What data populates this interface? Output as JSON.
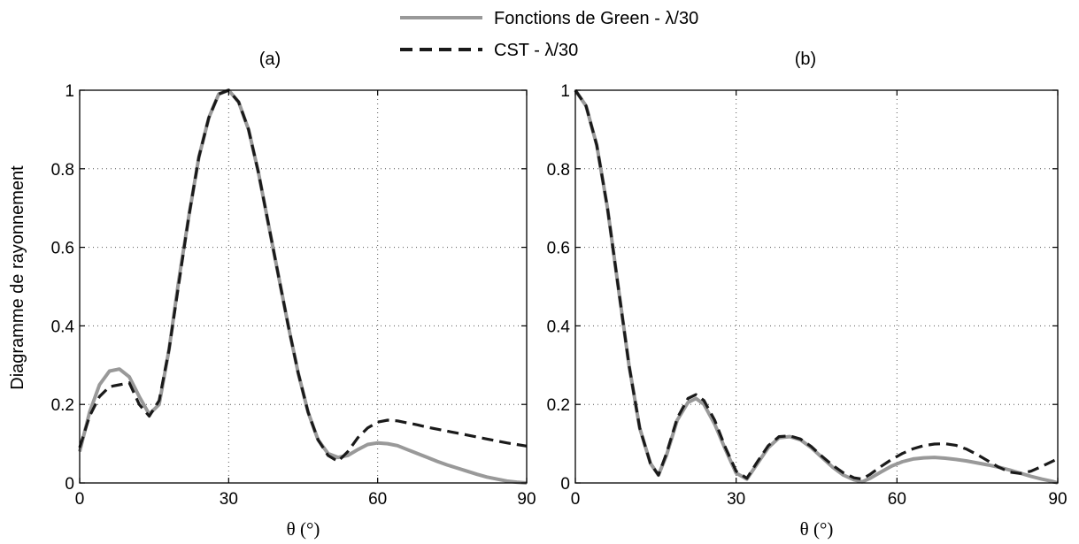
{
  "chart_data": [
    {
      "type": "line",
      "panel_label": "(a)",
      "xlabel": "θ (°)",
      "ylabel": "Diagramme de rayonnement",
      "xlim": [
        0,
        90
      ],
      "ylim": [
        0,
        1
      ],
      "xticks": [
        0,
        30,
        60,
        90
      ],
      "yticks": [
        0,
        0.2,
        0.4,
        0.6,
        0.8,
        1
      ],
      "xtick_labels": [
        "0",
        "30",
        "60",
        "90"
      ],
      "ytick_labels": [
        "0",
        "0.2",
        "0.4",
        "0.6",
        "0.8",
        "1"
      ],
      "grid": "dotted, at major ticks",
      "series": [
        {
          "name": "Fonctions de Green - λ/30",
          "color": "#999999",
          "style": "solid",
          "x": [
            0,
            2,
            4,
            6,
            8,
            10,
            12,
            14,
            16,
            18,
            20,
            22,
            24,
            26,
            28,
            30,
            32,
            34,
            36,
            38,
            40,
            42,
            44,
            46,
            48,
            50,
            52,
            54,
            56,
            58,
            60,
            62,
            64,
            66,
            68,
            70,
            72,
            74,
            76,
            78,
            80,
            82,
            84,
            86,
            88,
            90
          ],
          "y": [
            0.08,
            0.18,
            0.25,
            0.285,
            0.29,
            0.27,
            0.22,
            0.175,
            0.2,
            0.34,
            0.52,
            0.68,
            0.83,
            0.93,
            0.99,
            1.0,
            0.97,
            0.9,
            0.79,
            0.66,
            0.53,
            0.4,
            0.28,
            0.18,
            0.11,
            0.075,
            0.065,
            0.07,
            0.085,
            0.098,
            0.102,
            0.1,
            0.095,
            0.085,
            0.075,
            0.065,
            0.055,
            0.046,
            0.038,
            0.03,
            0.022,
            0.015,
            0.01,
            0.005,
            0.002,
            0.0
          ]
        },
        {
          "name": "CST - λ/30",
          "color": "#1a1a1a",
          "style": "dashed",
          "x": [
            0,
            2,
            4,
            6,
            8,
            10,
            12,
            14,
            16,
            18,
            20,
            22,
            24,
            26,
            28,
            30,
            32,
            34,
            36,
            38,
            40,
            42,
            44,
            46,
            48,
            50,
            52,
            54,
            56,
            58,
            60,
            62,
            64,
            66,
            68,
            70,
            72,
            74,
            76,
            78,
            80,
            82,
            84,
            86,
            88,
            90
          ],
          "y": [
            0.09,
            0.17,
            0.22,
            0.245,
            0.25,
            0.255,
            0.2,
            0.17,
            0.21,
            0.34,
            0.51,
            0.68,
            0.83,
            0.93,
            0.99,
            1.0,
            0.97,
            0.9,
            0.79,
            0.66,
            0.53,
            0.4,
            0.28,
            0.18,
            0.11,
            0.07,
            0.055,
            0.08,
            0.115,
            0.14,
            0.155,
            0.16,
            0.158,
            0.153,
            0.148,
            0.142,
            0.137,
            0.132,
            0.127,
            0.122,
            0.117,
            0.112,
            0.107,
            0.102,
            0.098,
            0.094
          ]
        }
      ]
    },
    {
      "type": "line",
      "panel_label": "(b)",
      "xlabel": "θ (°)",
      "ylabel": "",
      "xlim": [
        0,
        90
      ],
      "ylim": [
        0,
        1
      ],
      "xticks": [
        0,
        30,
        60,
        90
      ],
      "yticks": [
        0,
        0.2,
        0.4,
        0.6,
        0.8,
        1
      ],
      "xtick_labels": [
        "0",
        "30",
        "60",
        "90"
      ],
      "ytick_labels": [
        "0",
        "0.2",
        "0.4",
        "0.6",
        "0.8",
        "1"
      ],
      "grid": "dotted, at major ticks",
      "series": [
        {
          "name": "Fonctions de Green - λ/30",
          "color": "#999999",
          "style": "solid",
          "x": [
            0,
            2,
            4,
            6,
            8,
            10,
            12,
            14,
            15.5,
            17,
            19,
            21,
            22.5,
            24,
            26,
            28,
            30,
            32,
            34,
            36,
            38,
            40,
            42,
            44,
            46,
            48,
            50,
            52,
            53.5,
            55,
            57,
            59,
            61,
            63,
            65,
            67,
            69,
            71,
            73,
            75,
            77,
            79,
            81,
            83,
            85,
            87,
            89,
            90
          ],
          "y": [
            1.0,
            0.96,
            0.86,
            0.7,
            0.5,
            0.3,
            0.14,
            0.05,
            0.02,
            0.07,
            0.16,
            0.205,
            0.215,
            0.2,
            0.15,
            0.085,
            0.025,
            0.01,
            0.05,
            0.09,
            0.115,
            0.118,
            0.11,
            0.09,
            0.065,
            0.04,
            0.02,
            0.008,
            0.003,
            0.012,
            0.028,
            0.043,
            0.054,
            0.061,
            0.064,
            0.065,
            0.063,
            0.06,
            0.056,
            0.051,
            0.046,
            0.04,
            0.033,
            0.025,
            0.017,
            0.01,
            0.004,
            0.0
          ]
        },
        {
          "name": "CST - λ/30",
          "color": "#1a1a1a",
          "style": "dashed",
          "x": [
            0,
            2,
            4,
            6,
            8,
            10,
            12,
            14,
            15.5,
            17,
            19,
            21,
            22.5,
            24,
            26,
            28,
            30,
            32,
            34,
            36,
            38,
            40,
            42,
            44,
            46,
            48,
            50,
            52,
            53.5,
            55,
            57,
            59,
            61,
            63,
            65,
            67,
            69,
            71,
            73,
            75,
            77,
            79,
            81,
            83,
            85,
            87,
            89,
            90
          ],
          "y": [
            1.0,
            0.96,
            0.86,
            0.7,
            0.5,
            0.3,
            0.14,
            0.05,
            0.02,
            0.075,
            0.165,
            0.215,
            0.225,
            0.21,
            0.16,
            0.09,
            0.03,
            0.012,
            0.055,
            0.095,
            0.118,
            0.12,
            0.112,
            0.093,
            0.068,
            0.045,
            0.026,
            0.013,
            0.01,
            0.022,
            0.042,
            0.06,
            0.075,
            0.087,
            0.095,
            0.099,
            0.1,
            0.096,
            0.086,
            0.072,
            0.056,
            0.04,
            0.028,
            0.024,
            0.03,
            0.042,
            0.055,
            0.062
          ]
        }
      ]
    }
  ],
  "legend": {
    "items": [
      {
        "label": "Fonctions de Green - λ/30",
        "color": "#999999",
        "style": "solid"
      },
      {
        "label": "CST - λ/30",
        "color": "#1a1a1a",
        "style": "dashed"
      }
    ],
    "placement": "top-center"
  }
}
